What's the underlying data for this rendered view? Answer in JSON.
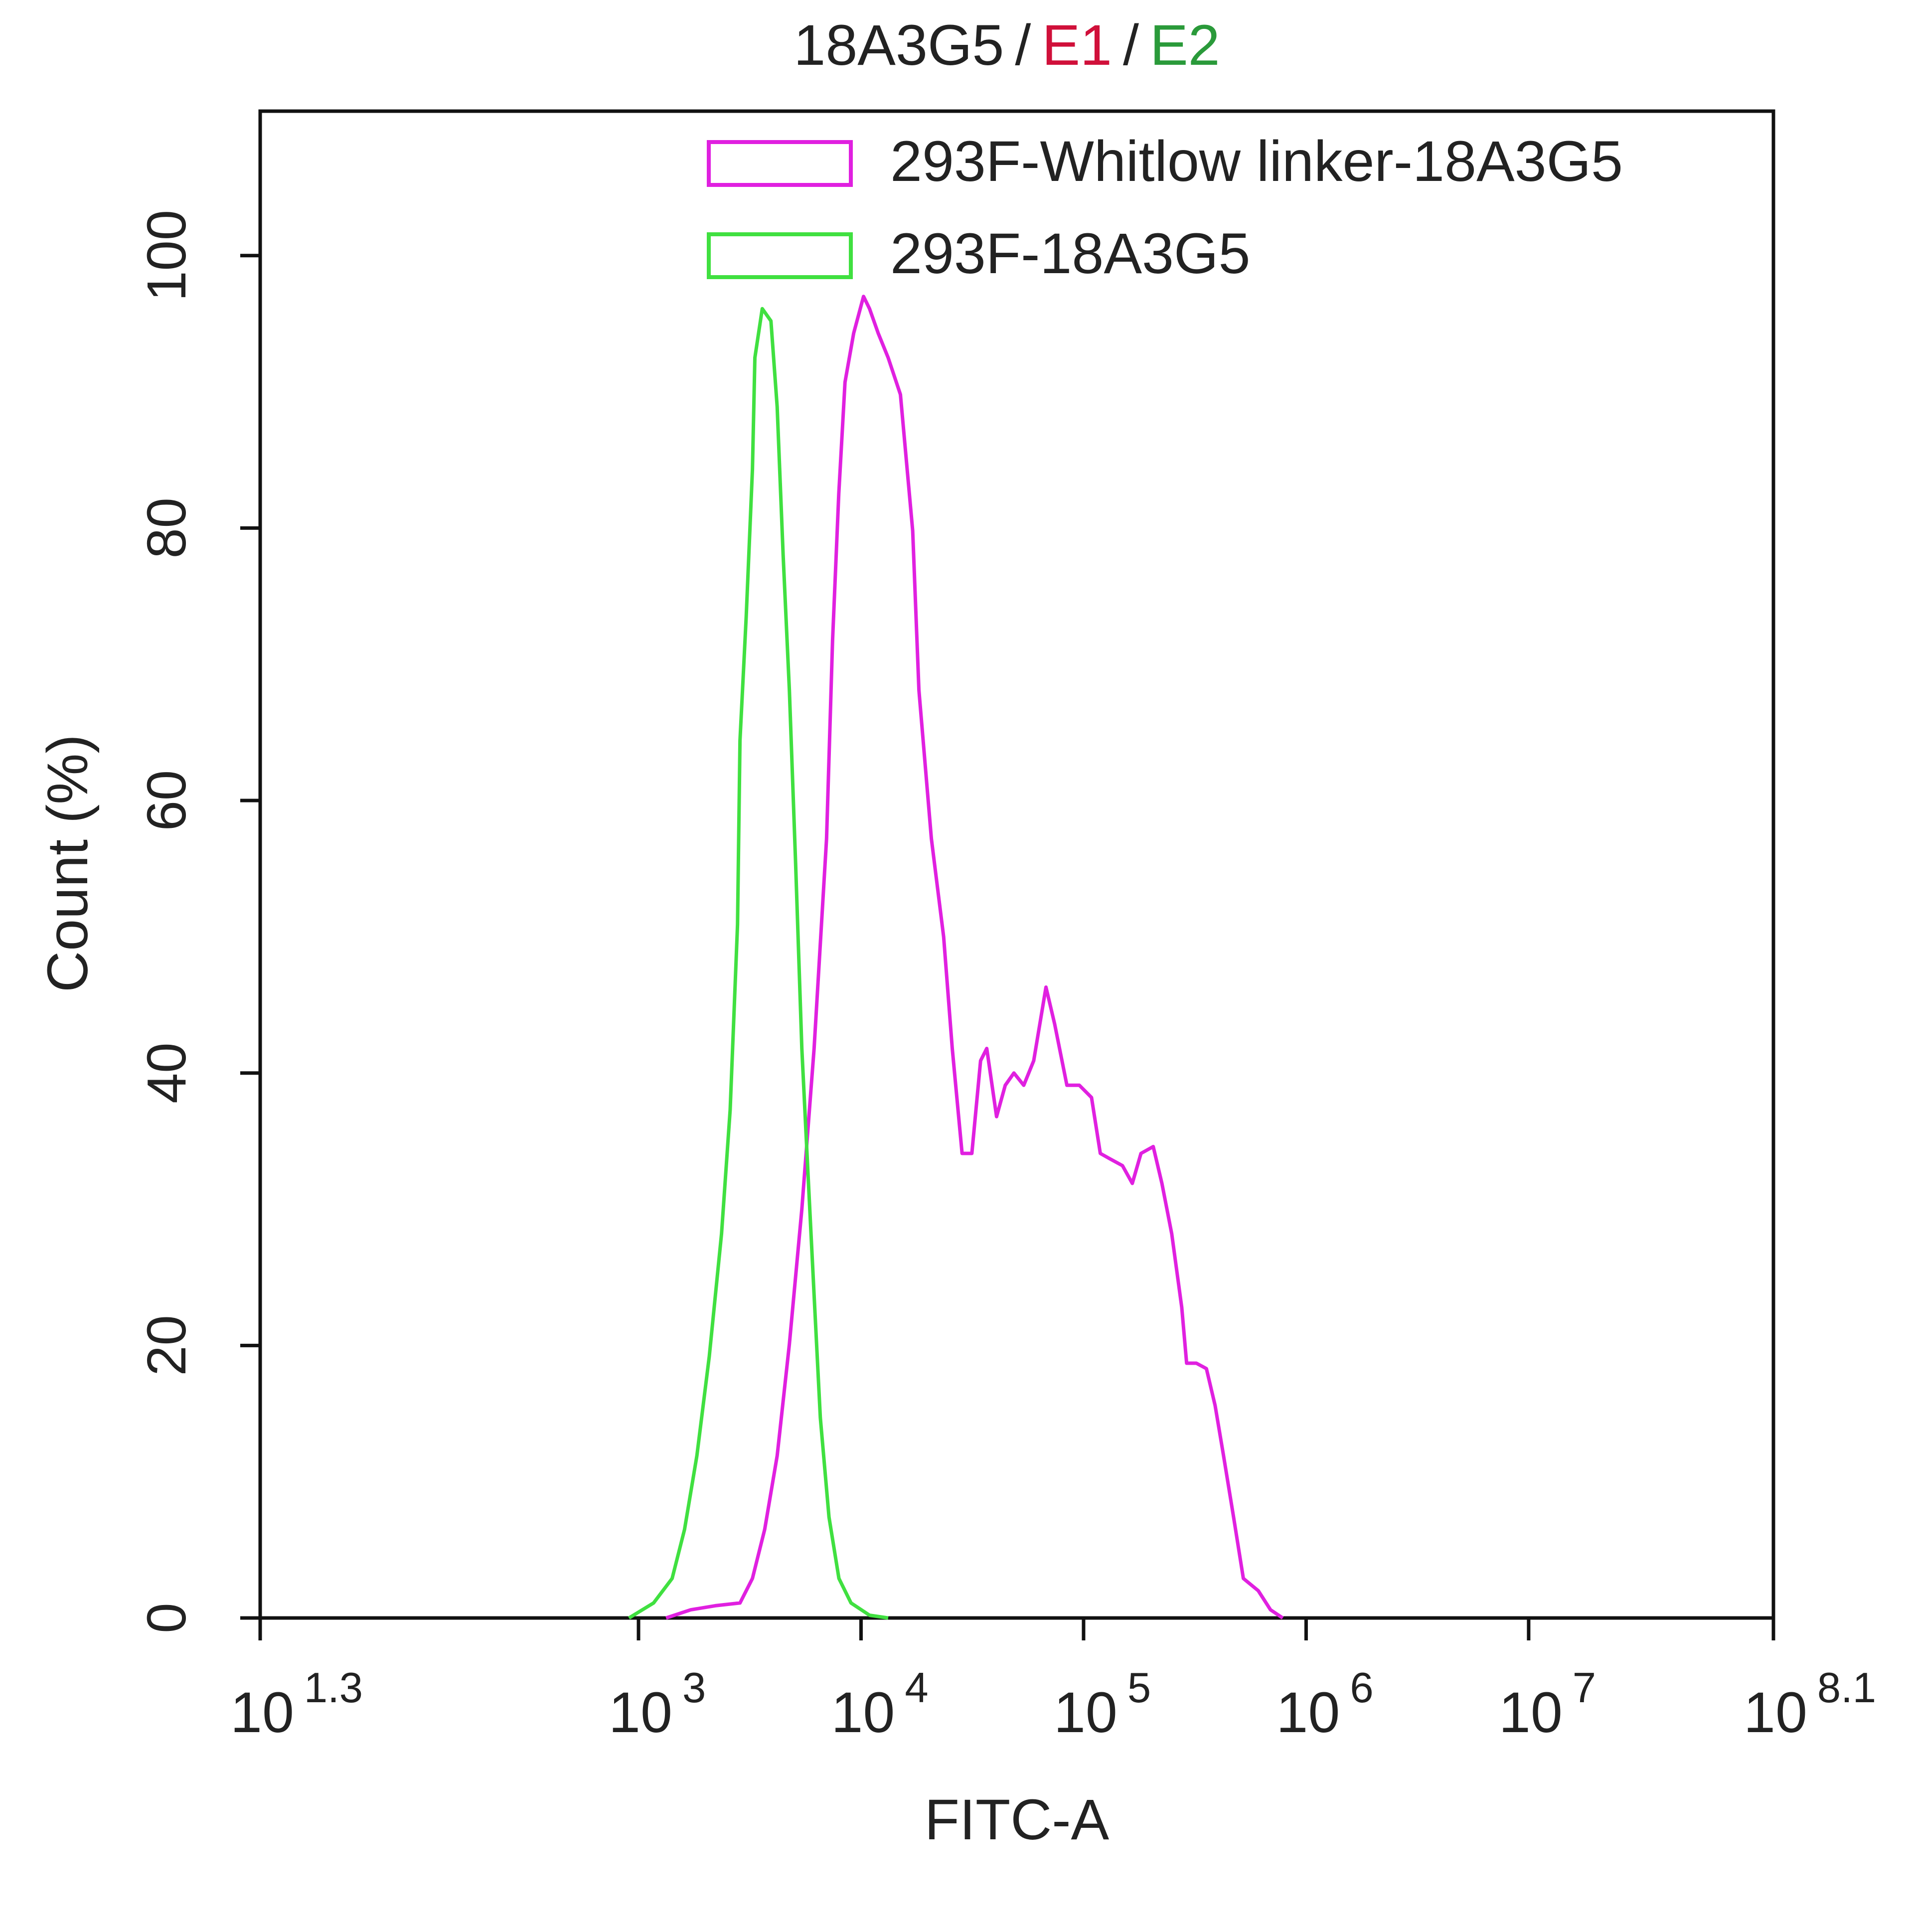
{
  "chart_data": {
    "type": "line",
    "title_parts": [
      {
        "text": "18A3G5",
        "color": "#222222"
      },
      {
        "text": "/",
        "color": "#222222"
      },
      {
        "text": "E1",
        "color": "#d0103a"
      },
      {
        "text": "/",
        "color": "#222222"
      },
      {
        "text": "E2",
        "color": "#2a9a3a"
      }
    ],
    "x_label": "FITC-A",
    "y_label": "Count (%)",
    "x_scale": "log",
    "xlim": [
      19.95,
      125900000
    ],
    "ylim": [
      0,
      110.6
    ],
    "xticks": [
      {
        "value": 19.95,
        "label": "10",
        "exponent": "1.3"
      },
      {
        "value": 1000,
        "label": "10",
        "exponent": "3"
      },
      {
        "value": 10000,
        "label": "10",
        "exponent": "4"
      },
      {
        "value": 100000,
        "label": "10",
        "exponent": "5"
      },
      {
        "value": 1000000,
        "label": "10",
        "exponent": "6"
      },
      {
        "value": 10000000,
        "label": "10",
        "exponent": "7"
      },
      {
        "value": 125900000,
        "label": "10",
        "exponent": "8.1"
      }
    ],
    "yticks": [
      0,
      20,
      40,
      60,
      80,
      100
    ],
    "legend": "top right",
    "series": [
      {
        "name": "293F-Whitlow linker-18A3G5",
        "color": "#e020e0",
        "x": [
          1330,
          1718,
          2215,
          2858,
          3251,
          3690,
          4198,
          4764,
          5420,
          6152,
          7000,
          7447,
          7943,
          8472,
          9267,
          10260,
          10920,
          11940,
          13240,
          15030,
          17060,
          18200,
          20700,
          23500,
          25700,
          28450,
          31480,
          34440,
          36730,
          40640,
          44460,
          48640,
          53830,
          59700,
          67760,
          74130,
          84140,
          95720,
          108600,
          118900,
          131500,
          149600,
          165600,
          181100,
          205600,
          224900,
          248900,
          276100,
          290400,
          321400,
          356500,
          389900,
          425600,
          472100,
          522400,
          609500,
          691800,
          785200
        ],
        "values": [
          0,
          0.6,
          0.9,
          1.1,
          2.9,
          6.5,
          11.9,
          20.1,
          30.0,
          41.8,
          57.2,
          71.7,
          82.5,
          90.7,
          94.3,
          97.0,
          96.1,
          94.3,
          92.5,
          89.8,
          79.8,
          68.1,
          57.2,
          50.0,
          41.8,
          34.1,
          34.1,
          40.9,
          41.8,
          36.8,
          39.1,
          40.0,
          39.1,
          40.9,
          46.3,
          43.6,
          39.1,
          39.1,
          38.2,
          34.1,
          33.7,
          33.2,
          31.9,
          34.1,
          34.6,
          31.9,
          28.2,
          22.8,
          18.7,
          18.7,
          18.3,
          15.6,
          11.9,
          7.4,
          2.9,
          2.0,
          0.6,
          0
        ]
      },
      {
        "name": "293F-18A3G5",
        "color": "#40e040",
        "x": [
          906,
          1169,
          1416,
          1610,
          1829,
          2080,
          2361,
          2582,
          2786,
          2858,
          3048,
          3251,
          3334,
          3599,
          3936,
          4198,
          4467,
          4764,
          5082,
          5420,
          5768,
          6152,
          6561,
          7178,
          7955,
          9016,
          10920,
          13240
        ],
        "values": [
          0,
          1.1,
          2.9,
          6.5,
          11.9,
          19.2,
          28.2,
          37.3,
          50.9,
          64.4,
          73.5,
          84.3,
          92.5,
          96.1,
          95.2,
          88.9,
          78.0,
          68.1,
          55.4,
          41.8,
          32.8,
          23.7,
          14.7,
          7.4,
          2.9,
          1.1,
          0.2,
          0
        ]
      }
    ]
  }
}
